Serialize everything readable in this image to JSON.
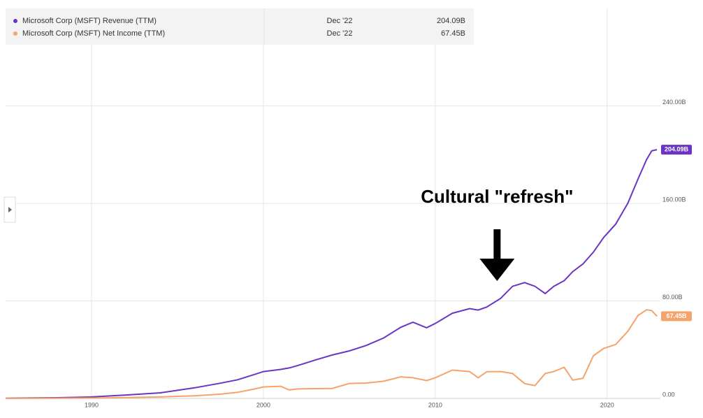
{
  "chart_data": {
    "type": "line",
    "annotation": {
      "text": "Cultural \"refresh\"",
      "x": 2013.6
    },
    "x": [
      1985,
      1988,
      1990,
      1992,
      1994,
      1996,
      1997.5,
      1998.5,
      1999.5,
      2000,
      2001,
      2001.5,
      2002,
      2003,
      2004,
      2005,
      2006,
      2007,
      2008,
      2008.7,
      2009.5,
      2010,
      2011,
      2012,
      2012.5,
      2013,
      2013.8,
      2014.5,
      2015.2,
      2015.8,
      2016.4,
      2016.9,
      2017.5,
      2018,
      2018.6,
      2019.2,
      2019.8,
      2020.5,
      2021.2,
      2021.8,
      2022.3,
      2022.6,
      2022.9
    ],
    "series": [
      {
        "name": "Microsoft Corp (MSFT) Revenue (TTM)",
        "color": "#6a35c5",
        "last_date": "Dec '22",
        "last_label": "204.09B",
        "values": [
          0.1,
          0.6,
          1.2,
          2.8,
          4.6,
          8.7,
          12.5,
          15.3,
          19.7,
          22.0,
          23.8,
          25.0,
          27.0,
          31.4,
          35.6,
          39.0,
          43.5,
          49.6,
          58.4,
          62.5,
          58.0,
          61.5,
          69.9,
          73.7,
          72.5,
          75.0,
          82.0,
          92.0,
          95.0,
          92.0,
          86.0,
          92.0,
          96.6,
          104.0,
          110.4,
          120.0,
          132.0,
          143.0,
          160.0,
          180.0,
          196.0,
          203.1,
          204.09
        ]
      },
      {
        "name": "Microsoft Corp (MSFT) Net Income (TTM)",
        "color": "#f6a36b",
        "last_date": "Dec '22",
        "last_label": "67.45B",
        "values": [
          0.0,
          0.1,
          0.3,
          0.7,
          1.2,
          2.2,
          3.5,
          5.0,
          7.8,
          9.4,
          10.0,
          7.0,
          7.8,
          8.0,
          8.2,
          12.3,
          12.6,
          14.1,
          17.7,
          17.0,
          14.6,
          17.0,
          23.2,
          22.0,
          17.0,
          21.9,
          22.1,
          20.5,
          12.2,
          10.5,
          20.5,
          22.0,
          25.5,
          15.0,
          16.6,
          35.0,
          41.0,
          44.3,
          55.0,
          68.0,
          72.7,
          72.0,
          67.45
        ]
      }
    ],
    "xlim": [
      1985,
      2023.1
    ],
    "xticks": [
      1990,
      2000,
      2010,
      2020
    ],
    "ylim": [
      0,
      320
    ],
    "yticks": [
      {
        "value": 0,
        "label": "0.00"
      },
      {
        "value": 80,
        "label": "80.00B"
      },
      {
        "value": 160,
        "label": "160.00B"
      },
      {
        "value": 240,
        "label": "240.00B"
      }
    ],
    "grid": true
  }
}
